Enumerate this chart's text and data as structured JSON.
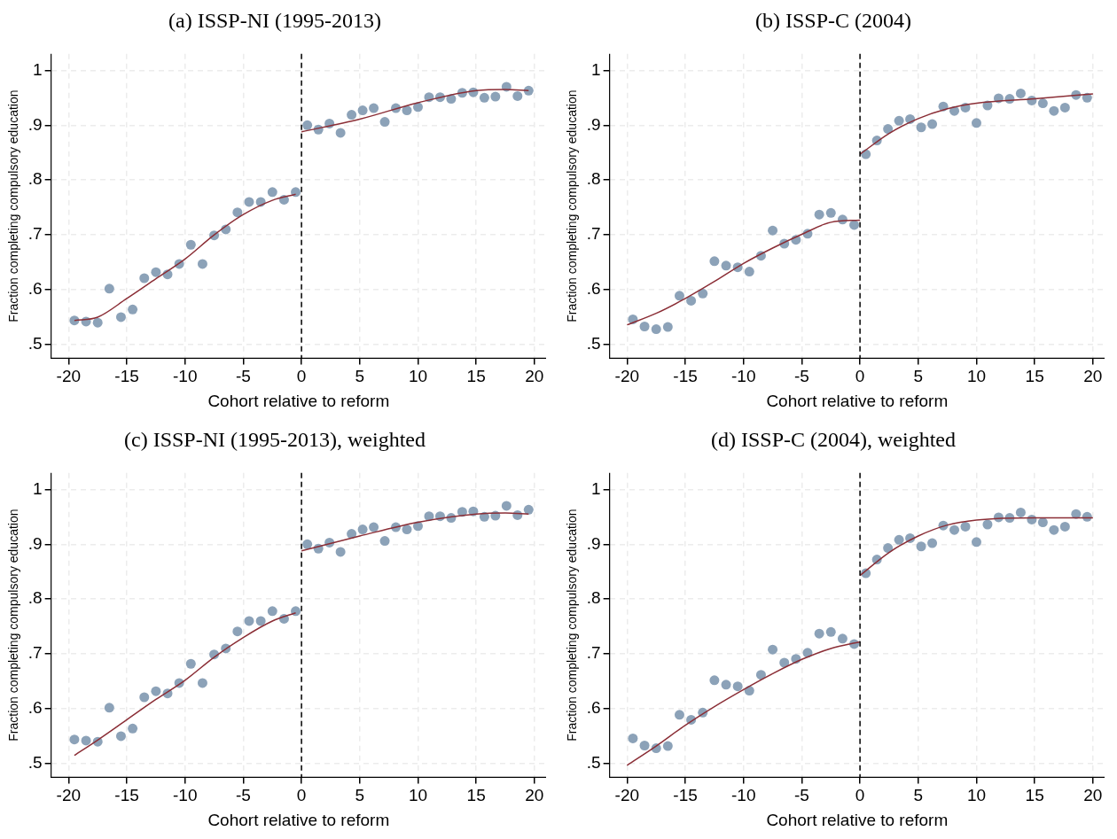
{
  "chart_data": [
    {
      "type": "scatter",
      "title": "(a) ISSP-NI (1995-2013)",
      "xlabel": "Cohort relative to reform",
      "ylabel": "Fraction completing compulsory education",
      "xlim": [
        -21.5,
        21
      ],
      "xticks": [
        -20,
        -15,
        -10,
        -5,
        0,
        5,
        10,
        15,
        20
      ],
      "ylim": [
        0.475,
        1.03
      ],
      "yticks": [
        {
          "value": 0.5,
          "label": ".5"
        },
        {
          "value": 0.6,
          "label": ".6"
        },
        {
          "value": 0.7,
          "label": ".7"
        },
        {
          "value": 0.8,
          "label": ".8"
        },
        {
          "value": 0.9,
          "label": ".9"
        },
        {
          "value": 1,
          "label": "1"
        }
      ],
      "grid": true,
      "marker": "circle",
      "series": [
        {
          "type": "scatter",
          "color": "#8ca2b8",
          "x": [
            -19.5,
            -18.5,
            -17.5,
            -16.5,
            -15.5,
            -14.5,
            -13.5,
            -12.5,
            -11.5,
            -10.5,
            -9.5,
            -8.5,
            -7.5,
            -6.5,
            -5.5,
            -4.5,
            -3.5,
            -2.5,
            -1.5,
            -0.5,
            0.5,
            1.45,
            2.4,
            3.35,
            4.3,
            5.25,
            6.2,
            7.15,
            8.1,
            9.05,
            10,
            10.95,
            11.9,
            12.85,
            13.8,
            14.75,
            15.7,
            16.65,
            17.6,
            18.55,
            19.5
          ],
          "values": [
            0.544,
            0.542,
            0.54,
            0.602,
            0.55,
            0.564,
            0.621,
            0.632,
            0.628,
            0.647,
            0.682,
            0.647,
            0.699,
            0.71,
            0.741,
            0.76,
            0.76,
            0.778,
            0.764,
            0.778,
            0.9,
            0.892,
            0.903,
            0.886,
            0.919,
            0.927,
            0.931,
            0.906,
            0.931,
            0.927,
            0.933,
            0.951,
            0.951,
            0.948,
            0.959,
            0.96,
            0.95,
            0.952,
            0.97,
            0.953,
            0.963
          ]
        },
        {
          "type": "line",
          "marker": "none",
          "color": "#8b2e36",
          "x": [
            -19.5,
            -17.5,
            -15,
            -12.5,
            -10,
            -7.5,
            -5,
            -2.5,
            -0.5
          ],
          "values": [
            0.544,
            0.55,
            0.584,
            0.62,
            0.656,
            0.7,
            0.737,
            0.763,
            0.774
          ]
        },
        {
          "type": "line",
          "marker": "none",
          "color": "#8b2e36",
          "x": [
            0,
            5,
            10,
            15,
            17.5,
            19.5
          ],
          "values": [
            0.888,
            0.911,
            0.941,
            0.963,
            0.965,
            0.963
          ]
        }
      ],
      "ref_lines": [
        {
          "axis": "x",
          "value": 0,
          "color": "#000000",
          "line_style": "dashed"
        }
      ]
    },
    {
      "type": "scatter",
      "title": "(b) ISSP-C (2004)",
      "xlabel": "Cohort relative to reform",
      "ylabel": "Fraction completing compulsory education",
      "xlim": [
        -21.5,
        21
      ],
      "xticks": [
        -20,
        -15,
        -10,
        -5,
        0,
        5,
        10,
        15,
        20
      ],
      "ylim": [
        0.475,
        1.03
      ],
      "yticks": [
        {
          "value": 0.5,
          "label": ".5"
        },
        {
          "value": 0.6,
          "label": ".6"
        },
        {
          "value": 0.7,
          "label": ".7"
        },
        {
          "value": 0.8,
          "label": ".8"
        },
        {
          "value": 0.9,
          "label": ".9"
        },
        {
          "value": 1,
          "label": "1"
        }
      ],
      "grid": true,
      "marker": "circle",
      "series": [
        {
          "type": "scatter",
          "color": "#8ca2b8",
          "x": [
            -19.5,
            -18.5,
            -17.5,
            -16.5,
            -15.5,
            -14.5,
            -13.5,
            -12.5,
            -11.5,
            -10.5,
            -9.5,
            -8.5,
            -7.5,
            -6.5,
            -5.5,
            -4.5,
            -3.5,
            -2.5,
            -1.5,
            -0.5,
            0.5,
            1.45,
            2.4,
            3.35,
            4.3,
            5.25,
            6.2,
            7.15,
            8.1,
            9.05,
            10,
            10.95,
            11.9,
            12.85,
            13.8,
            14.75,
            15.7,
            16.65,
            17.6,
            18.55,
            19.5
          ],
          "values": [
            0.546,
            0.533,
            0.528,
            0.532,
            0.589,
            0.58,
            0.593,
            0.652,
            0.644,
            0.641,
            0.633,
            0.662,
            0.708,
            0.684,
            0.691,
            0.702,
            0.737,
            0.74,
            0.728,
            0.718,
            0.847,
            0.872,
            0.893,
            0.908,
            0.911,
            0.896,
            0.902,
            0.934,
            0.926,
            0.932,
            0.904,
            0.936,
            0.949,
            0.948,
            0.958,
            0.945,
            0.94,
            0.926,
            0.932,
            0.955,
            0.95
          ]
        },
        {
          "type": "line",
          "marker": "none",
          "color": "#8b2e36",
          "x": [
            -20,
            -17.5,
            -15,
            -12.5,
            -10,
            -7.5,
            -5,
            -2.5,
            0
          ],
          "values": [
            0.536,
            0.557,
            0.584,
            0.615,
            0.648,
            0.676,
            0.701,
            0.723,
            0.727
          ]
        },
        {
          "type": "line",
          "marker": "none",
          "color": "#8b2e36",
          "x": [
            0,
            2.5,
            5,
            7.5,
            10,
            15,
            20
          ],
          "values": [
            0.847,
            0.885,
            0.912,
            0.93,
            0.94,
            0.948,
            0.957
          ]
        }
      ],
      "ref_lines": [
        {
          "axis": "x",
          "value": 0,
          "color": "#000000",
          "line_style": "dashed"
        }
      ]
    },
    {
      "type": "scatter",
      "title": "(c) ISSP-NI (1995-2013), weighted",
      "xlabel": "Cohort relative to reform",
      "ylabel": "Fraction completing compulsory education",
      "xlim": [
        -21.5,
        21
      ],
      "xticks": [
        -20,
        -15,
        -10,
        -5,
        0,
        5,
        10,
        15,
        20
      ],
      "ylim": [
        0.475,
        1.03
      ],
      "yticks": [
        {
          "value": 0.5,
          "label": ".5"
        },
        {
          "value": 0.6,
          "label": ".6"
        },
        {
          "value": 0.7,
          "label": ".7"
        },
        {
          "value": 0.8,
          "label": ".8"
        },
        {
          "value": 0.9,
          "label": ".9"
        },
        {
          "value": 1,
          "label": "1"
        }
      ],
      "grid": true,
      "marker": "circle",
      "series": [
        {
          "type": "scatter",
          "color": "#8ca2b8",
          "x": [
            -19.5,
            -18.5,
            -17.5,
            -16.5,
            -15.5,
            -14.5,
            -13.5,
            -12.5,
            -11.5,
            -10.5,
            -9.5,
            -8.5,
            -7.5,
            -6.5,
            -5.5,
            -4.5,
            -3.5,
            -2.5,
            -1.5,
            -0.5,
            0.5,
            1.45,
            2.4,
            3.35,
            4.3,
            5.25,
            6.2,
            7.15,
            8.1,
            9.05,
            10,
            10.95,
            11.9,
            12.85,
            13.8,
            14.75,
            15.7,
            16.65,
            17.6,
            18.55,
            19.5
          ],
          "values": [
            0.544,
            0.542,
            0.54,
            0.602,
            0.55,
            0.564,
            0.621,
            0.632,
            0.628,
            0.647,
            0.682,
            0.647,
            0.699,
            0.71,
            0.741,
            0.76,
            0.76,
            0.778,
            0.764,
            0.778,
            0.9,
            0.892,
            0.903,
            0.886,
            0.919,
            0.927,
            0.931,
            0.906,
            0.931,
            0.927,
            0.933,
            0.951,
            0.951,
            0.948,
            0.959,
            0.96,
            0.95,
            0.952,
            0.97,
            0.953,
            0.963
          ]
        },
        {
          "type": "line",
          "marker": "none",
          "color": "#8b2e36",
          "x": [
            -19.5,
            -17.5,
            -15,
            -12.5,
            -10,
            -7.5,
            -5,
            -2.5,
            -0.5
          ],
          "values": [
            0.515,
            0.543,
            0.58,
            0.617,
            0.652,
            0.694,
            0.73,
            0.76,
            0.775
          ]
        },
        {
          "type": "line",
          "marker": "none",
          "color": "#8b2e36",
          "x": [
            0,
            5,
            10,
            15,
            17.5,
            19.5
          ],
          "values": [
            0.888,
            0.915,
            0.94,
            0.955,
            0.957,
            0.955
          ]
        }
      ],
      "ref_lines": [
        {
          "axis": "x",
          "value": 0,
          "color": "#000000",
          "line_style": "dashed"
        }
      ]
    },
    {
      "type": "scatter",
      "title": "(d) ISSP-C (2004), weighted",
      "xlabel": "Cohort relative to reform",
      "ylabel": "Fraction completing compulsory education",
      "xlim": [
        -21.5,
        21
      ],
      "xticks": [
        -20,
        -15,
        -10,
        -5,
        0,
        5,
        10,
        15,
        20
      ],
      "ylim": [
        0.475,
        1.03
      ],
      "yticks": [
        {
          "value": 0.5,
          "label": ".5"
        },
        {
          "value": 0.6,
          "label": ".6"
        },
        {
          "value": 0.7,
          "label": ".7"
        },
        {
          "value": 0.8,
          "label": ".8"
        },
        {
          "value": 0.9,
          "label": ".9"
        },
        {
          "value": 1,
          "label": "1"
        }
      ],
      "grid": true,
      "marker": "circle",
      "series": [
        {
          "type": "scatter",
          "color": "#8ca2b8",
          "x": [
            -19.5,
            -18.5,
            -17.5,
            -16.5,
            -15.5,
            -14.5,
            -13.5,
            -12.5,
            -11.5,
            -10.5,
            -9.5,
            -8.5,
            -7.5,
            -6.5,
            -5.5,
            -4.5,
            -3.5,
            -2.5,
            -1.5,
            -0.5,
            0.5,
            1.45,
            2.4,
            3.35,
            4.3,
            5.25,
            6.2,
            7.15,
            8.1,
            9.05,
            10,
            10.95,
            11.9,
            12.85,
            13.8,
            14.75,
            15.7,
            16.65,
            17.6,
            18.55,
            19.5
          ],
          "values": [
            0.546,
            0.533,
            0.528,
            0.532,
            0.589,
            0.58,
            0.593,
            0.652,
            0.644,
            0.641,
            0.633,
            0.662,
            0.708,
            0.684,
            0.691,
            0.702,
            0.737,
            0.74,
            0.728,
            0.718,
            0.847,
            0.872,
            0.893,
            0.908,
            0.911,
            0.896,
            0.902,
            0.934,
            0.926,
            0.932,
            0.904,
            0.936,
            0.949,
            0.948,
            0.958,
            0.945,
            0.94,
            0.926,
            0.932,
            0.955,
            0.95
          ]
        },
        {
          "type": "line",
          "marker": "none",
          "color": "#8b2e36",
          "x": [
            -20,
            -17.5,
            -15,
            -12.5,
            -10,
            -7.5,
            -5,
            -2.5,
            0
          ],
          "values": [
            0.497,
            0.532,
            0.57,
            0.604,
            0.635,
            0.664,
            0.69,
            0.71,
            0.722
          ]
        },
        {
          "type": "line",
          "marker": "none",
          "color": "#8b2e36",
          "x": [
            0,
            2.5,
            5,
            7.5,
            10,
            15,
            20
          ],
          "values": [
            0.843,
            0.885,
            0.915,
            0.935,
            0.944,
            0.948,
            0.948
          ]
        }
      ],
      "ref_lines": [
        {
          "axis": "x",
          "value": 0,
          "color": "#000000",
          "line_style": "dashed"
        }
      ]
    }
  ]
}
